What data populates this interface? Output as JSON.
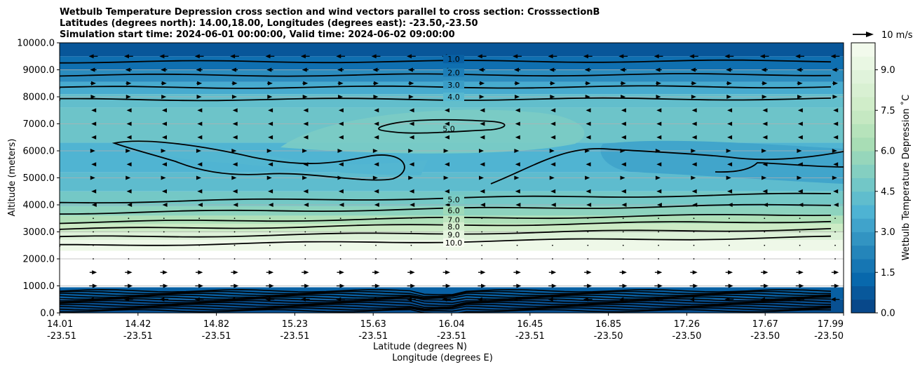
{
  "chart_data": {
    "type": "contour",
    "title_lines": [
      "Wetbulb Temperature Depression cross section and wind vectors parallel to cross section: CrosssectionB",
      "Latitudes (degrees north): 14.00,18.00, Longitudes (degrees east): -23.50,-23.50",
      "Simulation start time: 2024-06-01 00:00:00, Valid time: 2024-06-02 09:00:00"
    ],
    "ylabel": "Altitude (meters)",
    "xlabel_lat": "Latitude (degrees N)",
    "xlabel_lon": "Longitude (degrees E)",
    "ylim": [
      0,
      10000
    ],
    "y_ticks": [
      "0.0",
      "1000.0",
      "2000.0",
      "3000.0",
      "4000.0",
      "5000.0",
      "6000.0",
      "7000.0",
      "8000.0",
      "9000.0",
      "10000.0"
    ],
    "x_ticks": [
      {
        "lat": "14.01",
        "lon": "-23.51"
      },
      {
        "lat": "14.42",
        "lon": "-23.51"
      },
      {
        "lat": "14.82",
        "lon": "-23.51"
      },
      {
        "lat": "15.23",
        "lon": "-23.51"
      },
      {
        "lat": "15.63",
        "lon": "-23.51"
      },
      {
        "lat": "16.04",
        "lon": "-23.51"
      },
      {
        "lat": "16.45",
        "lon": "-23.51"
      },
      {
        "lat": "16.85",
        "lon": "-23.50"
      },
      {
        "lat": "17.26",
        "lon": "-23.50"
      },
      {
        "lat": "17.67",
        "lon": "-23.50"
      },
      {
        "lat": "17.99",
        "lon": "-23.50"
      }
    ],
    "grid": "horizontal",
    "colorbar": {
      "label": "Wetbulb Temperature Depression ˚C",
      "ticks": [
        "0.0",
        "1.5",
        "3.0",
        "4.5",
        "6.0",
        "7.5",
        "9.0"
      ],
      "range": [
        0,
        10
      ],
      "colormap": "GnBu_r"
    },
    "quiver_key": {
      "label": "10 m/s"
    },
    "contour_lines": [
      {
        "level": "1.0",
        "label": "1.0",
        "altitude": 9450
      },
      {
        "level": "2.0",
        "label": "2.0",
        "altitude": 8950
      },
      {
        "level": "3.0",
        "label": "3.0",
        "altitude": 8500
      },
      {
        "level": "4.0",
        "label": "4.0",
        "altitude": 8050
      },
      {
        "level": "5.0",
        "label": "5.0",
        "altitude": 6850
      },
      {
        "level": "5.0",
        "label": "5.0",
        "altitude": 4250
      },
      {
        "level": "6.0",
        "label": "6.0",
        "altitude": 3850
      },
      {
        "level": "7.0",
        "label": "7.0",
        "altitude": 3500
      },
      {
        "level": "8.0",
        "label": "8.0",
        "altitude": 3250
      },
      {
        "level": "9.0",
        "label": "9.0",
        "altitude": 2950
      },
      {
        "level": "10.0",
        "label": "10.0",
        "altitude": 2650
      }
    ],
    "field_bands": [
      {
        "from": 0,
        "to": 500,
        "value": 0.5
      },
      {
        "from": 500,
        "to": 950,
        "value": 1.0
      },
      {
        "from": 950,
        "to": 2300,
        "value": 11.0
      },
      {
        "from": 2300,
        "to": 2700,
        "value": 9.5
      },
      {
        "from": 2700,
        "to": 3000,
        "value": 8.5
      },
      {
        "from": 3000,
        "to": 3300,
        "value": 7.5
      },
      {
        "from": 3300,
        "to": 3600,
        "value": 6.5
      },
      {
        "from": 3600,
        "to": 3950,
        "value": 5.5
      },
      {
        "from": 3950,
        "to": 4500,
        "value": 4.8
      },
      {
        "from": 4500,
        "to": 5200,
        "value": 4.2
      },
      {
        "from": 5200,
        "to": 6300,
        "value": 3.8
      },
      {
        "from": 6300,
        "to": 7600,
        "value": 4.6
      },
      {
        "from": 7600,
        "to": 8100,
        "value": 4.3
      },
      {
        "from": 8100,
        "to": 8550,
        "value": 3.5
      },
      {
        "from": 8550,
        "to": 9000,
        "value": 2.5
      },
      {
        "from": 9000,
        "to": 9500,
        "value": 1.5
      },
      {
        "from": 9500,
        "to": 10000,
        "value": 0.7
      }
    ],
    "wind_rows": [
      {
        "altitude": 9500,
        "direction": "left",
        "magnitude": 0.9
      },
      {
        "altitude": 9000,
        "direction": "left",
        "magnitude": 0.6
      },
      {
        "altitude": 8500,
        "direction": "right",
        "magnitude": 0.5
      },
      {
        "altitude": 8000,
        "direction": "right",
        "magnitude": 0.4
      },
      {
        "altitude": 7500,
        "direction": "left",
        "magnitude": 0.3
      },
      {
        "altitude": 7000,
        "direction": "left",
        "magnitude": 0.3
      },
      {
        "altitude": 6500,
        "direction": "left",
        "magnitude": 0.3
      },
      {
        "altitude": 6000,
        "direction": "right",
        "magnitude": 0.3
      },
      {
        "altitude": 5500,
        "direction": "left",
        "magnitude": 0.3
      },
      {
        "altitude": 5000,
        "direction": "right",
        "magnitude": 0.3
      },
      {
        "altitude": 4500,
        "direction": "left",
        "magnitude": 0.3
      },
      {
        "altitude": 4000,
        "direction": "left",
        "magnitude": 0.2
      },
      {
        "altitude": 3500,
        "direction": "left",
        "magnitude": 0.1
      },
      {
        "altitude": 3000,
        "direction": "right",
        "magnitude": 0.1
      },
      {
        "altitude": 2500,
        "direction": "right",
        "magnitude": 0.1
      },
      {
        "altitude": 2000,
        "direction": "right",
        "magnitude": 0.1
      },
      {
        "altitude": 1500,
        "direction": "right",
        "magnitude": 0.7
      },
      {
        "altitude": 1000,
        "direction": "right",
        "magnitude": 0.8
      },
      {
        "altitude": 500,
        "direction": "left",
        "magnitude": 0.9
      }
    ]
  }
}
